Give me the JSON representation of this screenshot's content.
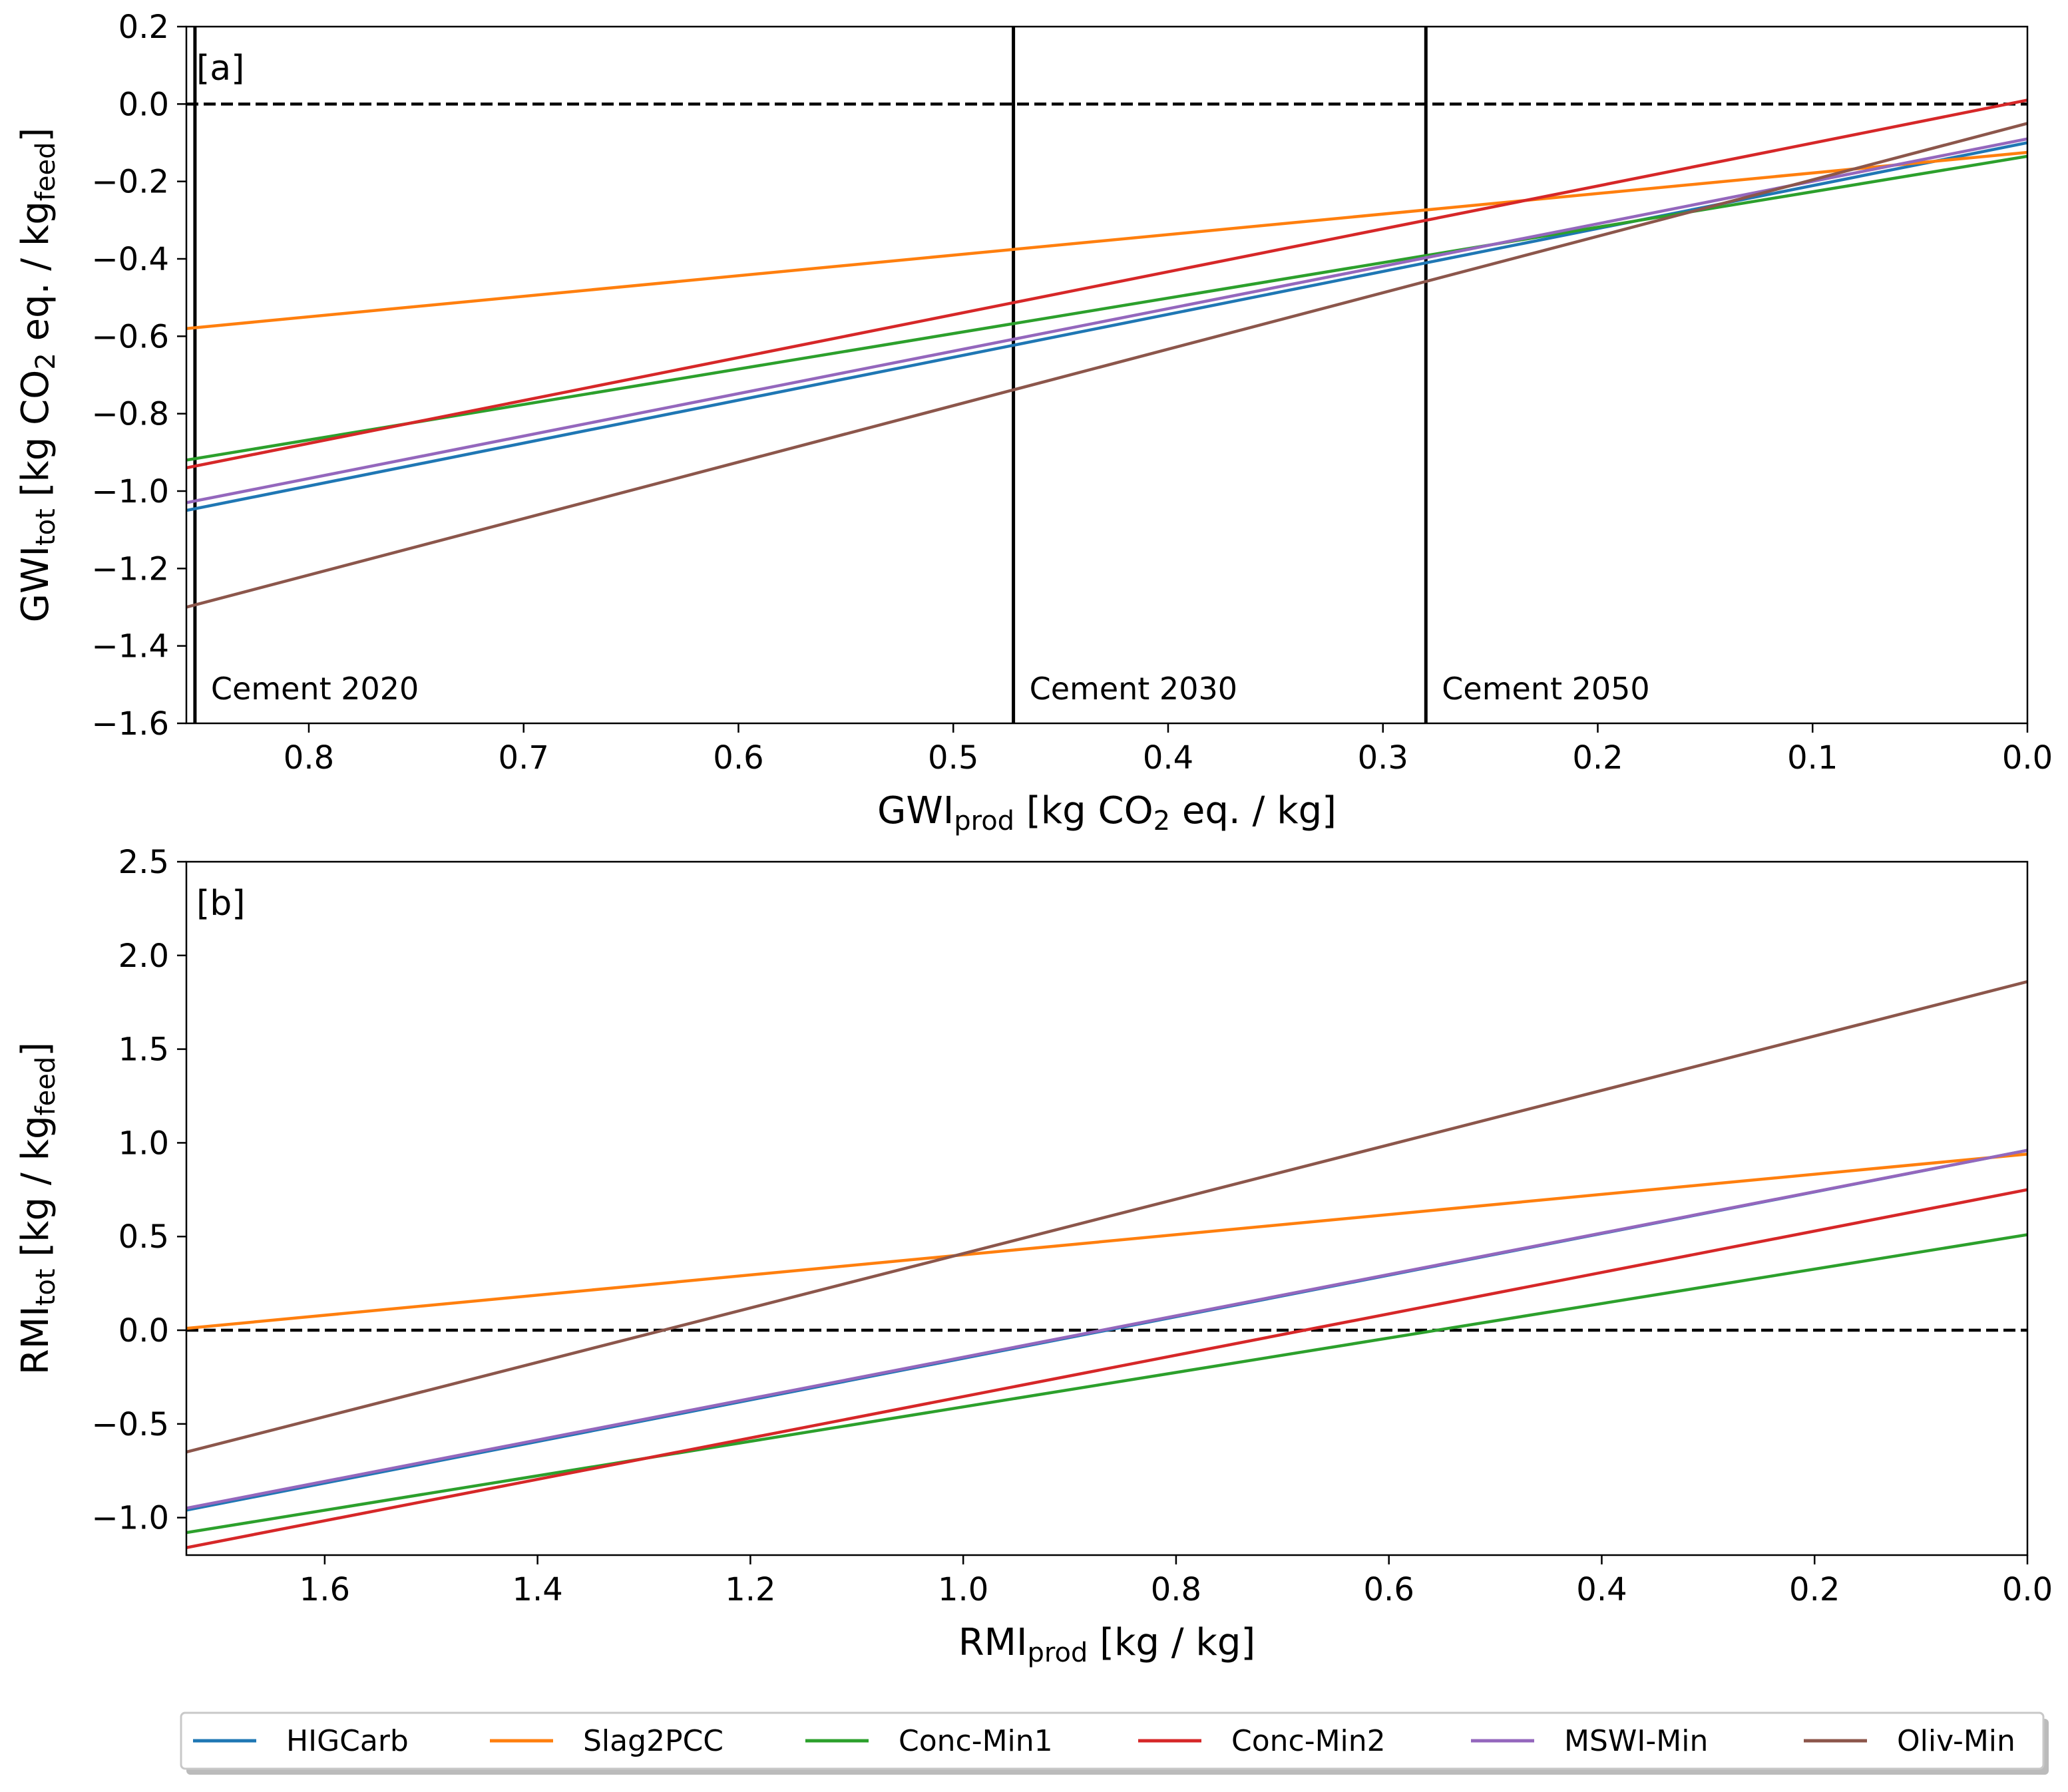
{
  "colors": {
    "HIGCarb": "#1f77b4",
    "Slag2PCC": "#ff7f0e",
    "Conc-Min1": "#2ca02c",
    "Conc-Min2": "#d62728",
    "MSWI-Min": "#9467bd",
    "Oliv-Min": "#8c564b",
    "reference": "#000000"
  },
  "chart_data": [
    {
      "type": "line",
      "panel": "[a]",
      "xlabel": {
        "main": "GWI",
        "sub": "prod",
        "rest": " [kg CO",
        "sub2": "2",
        "tail": " eq. / kg]"
      },
      "ylabel": {
        "main": "GWI",
        "sub": "tot",
        "rest": " [kg CO",
        "sub2": "2",
        "mid": " eq. / kg",
        "sub3": "feed",
        "tail": "]"
      },
      "xlim": [
        0.857,
        0.0
      ],
      "ylim": [
        -1.6,
        0.2
      ],
      "xticks": [
        0.8,
        0.7,
        0.6,
        0.5,
        0.4,
        0.3,
        0.2,
        0.1,
        0.0
      ],
      "xtick_labels": [
        "0.8",
        "0.7",
        "0.6",
        "0.5",
        "0.4",
        "0.3",
        "0.2",
        "0.1",
        "0.0"
      ],
      "yticks": [
        -1.6,
        -1.4,
        -1.2,
        -1.0,
        -0.8,
        -0.6,
        -0.4,
        -0.2,
        0.0,
        0.2
      ],
      "ytick_labels": [
        "−1.6",
        "−1.4",
        "−1.2",
        "−1.0",
        "−0.8",
        "−0.6",
        "−0.4",
        "−0.2",
        "0.0",
        "0.2"
      ],
      "hline": 0.0,
      "vlines": [
        {
          "x": 0.853,
          "label": "Cement 2020"
        },
        {
          "x": 0.472,
          "label": "Cement 2030"
        },
        {
          "x": 0.28,
          "label": "Cement 2050"
        }
      ],
      "series": [
        {
          "name": "HIGCarb",
          "x": [
            0.857,
            0.0
          ],
          "y": [
            -1.05,
            -0.1
          ]
        },
        {
          "name": "Slag2PCC",
          "x": [
            0.857,
            0.0
          ],
          "y": [
            -0.58,
            -0.125
          ]
        },
        {
          "name": "Conc-Min1",
          "x": [
            0.857,
            0.0
          ],
          "y": [
            -0.92,
            -0.135
          ]
        },
        {
          "name": "Conc-Min2",
          "x": [
            0.857,
            0.0
          ],
          "y": [
            -0.94,
            0.01
          ]
        },
        {
          "name": "MSWI-Min",
          "x": [
            0.857,
            0.0
          ],
          "y": [
            -1.03,
            -0.09
          ]
        },
        {
          "name": "Oliv-Min",
          "x": [
            0.857,
            0.0
          ],
          "y": [
            -1.3,
            -0.05
          ]
        }
      ]
    },
    {
      "type": "line",
      "panel": "[b]",
      "xlabel": {
        "main": "RMI",
        "sub": "prod",
        "rest": " [kg / kg]"
      },
      "ylabel": {
        "main": "RMI",
        "sub": "tot",
        "rest": " [kg / kg",
        "sub2": "feed",
        "tail": "]"
      },
      "xlim": [
        1.73,
        0.0
      ],
      "ylim": [
        -1.2,
        2.5
      ],
      "xticks": [
        1.6,
        1.4,
        1.2,
        1.0,
        0.8,
        0.6,
        0.4,
        0.2,
        0.0
      ],
      "xtick_labels": [
        "1.6",
        "1.4",
        "1.2",
        "1.0",
        "0.8",
        "0.6",
        "0.4",
        "0.2",
        "0.0"
      ],
      "yticks": [
        -1.0,
        -0.5,
        0.0,
        0.5,
        1.0,
        1.5,
        2.0,
        2.5
      ],
      "ytick_labels": [
        "−1.0",
        "−0.5",
        "0.0",
        "0.5",
        "1.0",
        "1.5",
        "2.0",
        "2.5"
      ],
      "hline": 0.0,
      "vlines": [],
      "series": [
        {
          "name": "HIGCarb",
          "x": [
            1.73,
            0.0
          ],
          "y": [
            -0.96,
            0.96
          ]
        },
        {
          "name": "Slag2PCC",
          "x": [
            1.73,
            0.0
          ],
          "y": [
            0.01,
            0.94
          ]
        },
        {
          "name": "Conc-Min1",
          "x": [
            1.73,
            0.0
          ],
          "y": [
            -1.08,
            0.51
          ]
        },
        {
          "name": "Conc-Min2",
          "x": [
            1.73,
            0.0
          ],
          "y": [
            -1.16,
            0.75
          ]
        },
        {
          "name": "MSWI-Min",
          "x": [
            1.73,
            0.0
          ],
          "y": [
            -0.95,
            0.96
          ]
        },
        {
          "name": "Oliv-Min",
          "x": [
            1.73,
            0.0
          ],
          "y": [
            -0.65,
            1.86
          ]
        }
      ]
    }
  ],
  "legend": {
    "placement": "bottom",
    "entries": [
      "HIGCarb",
      "Slag2PCC",
      "Conc-Min1",
      "Conc-Min2",
      "MSWI-Min",
      "Oliv-Min"
    ]
  }
}
